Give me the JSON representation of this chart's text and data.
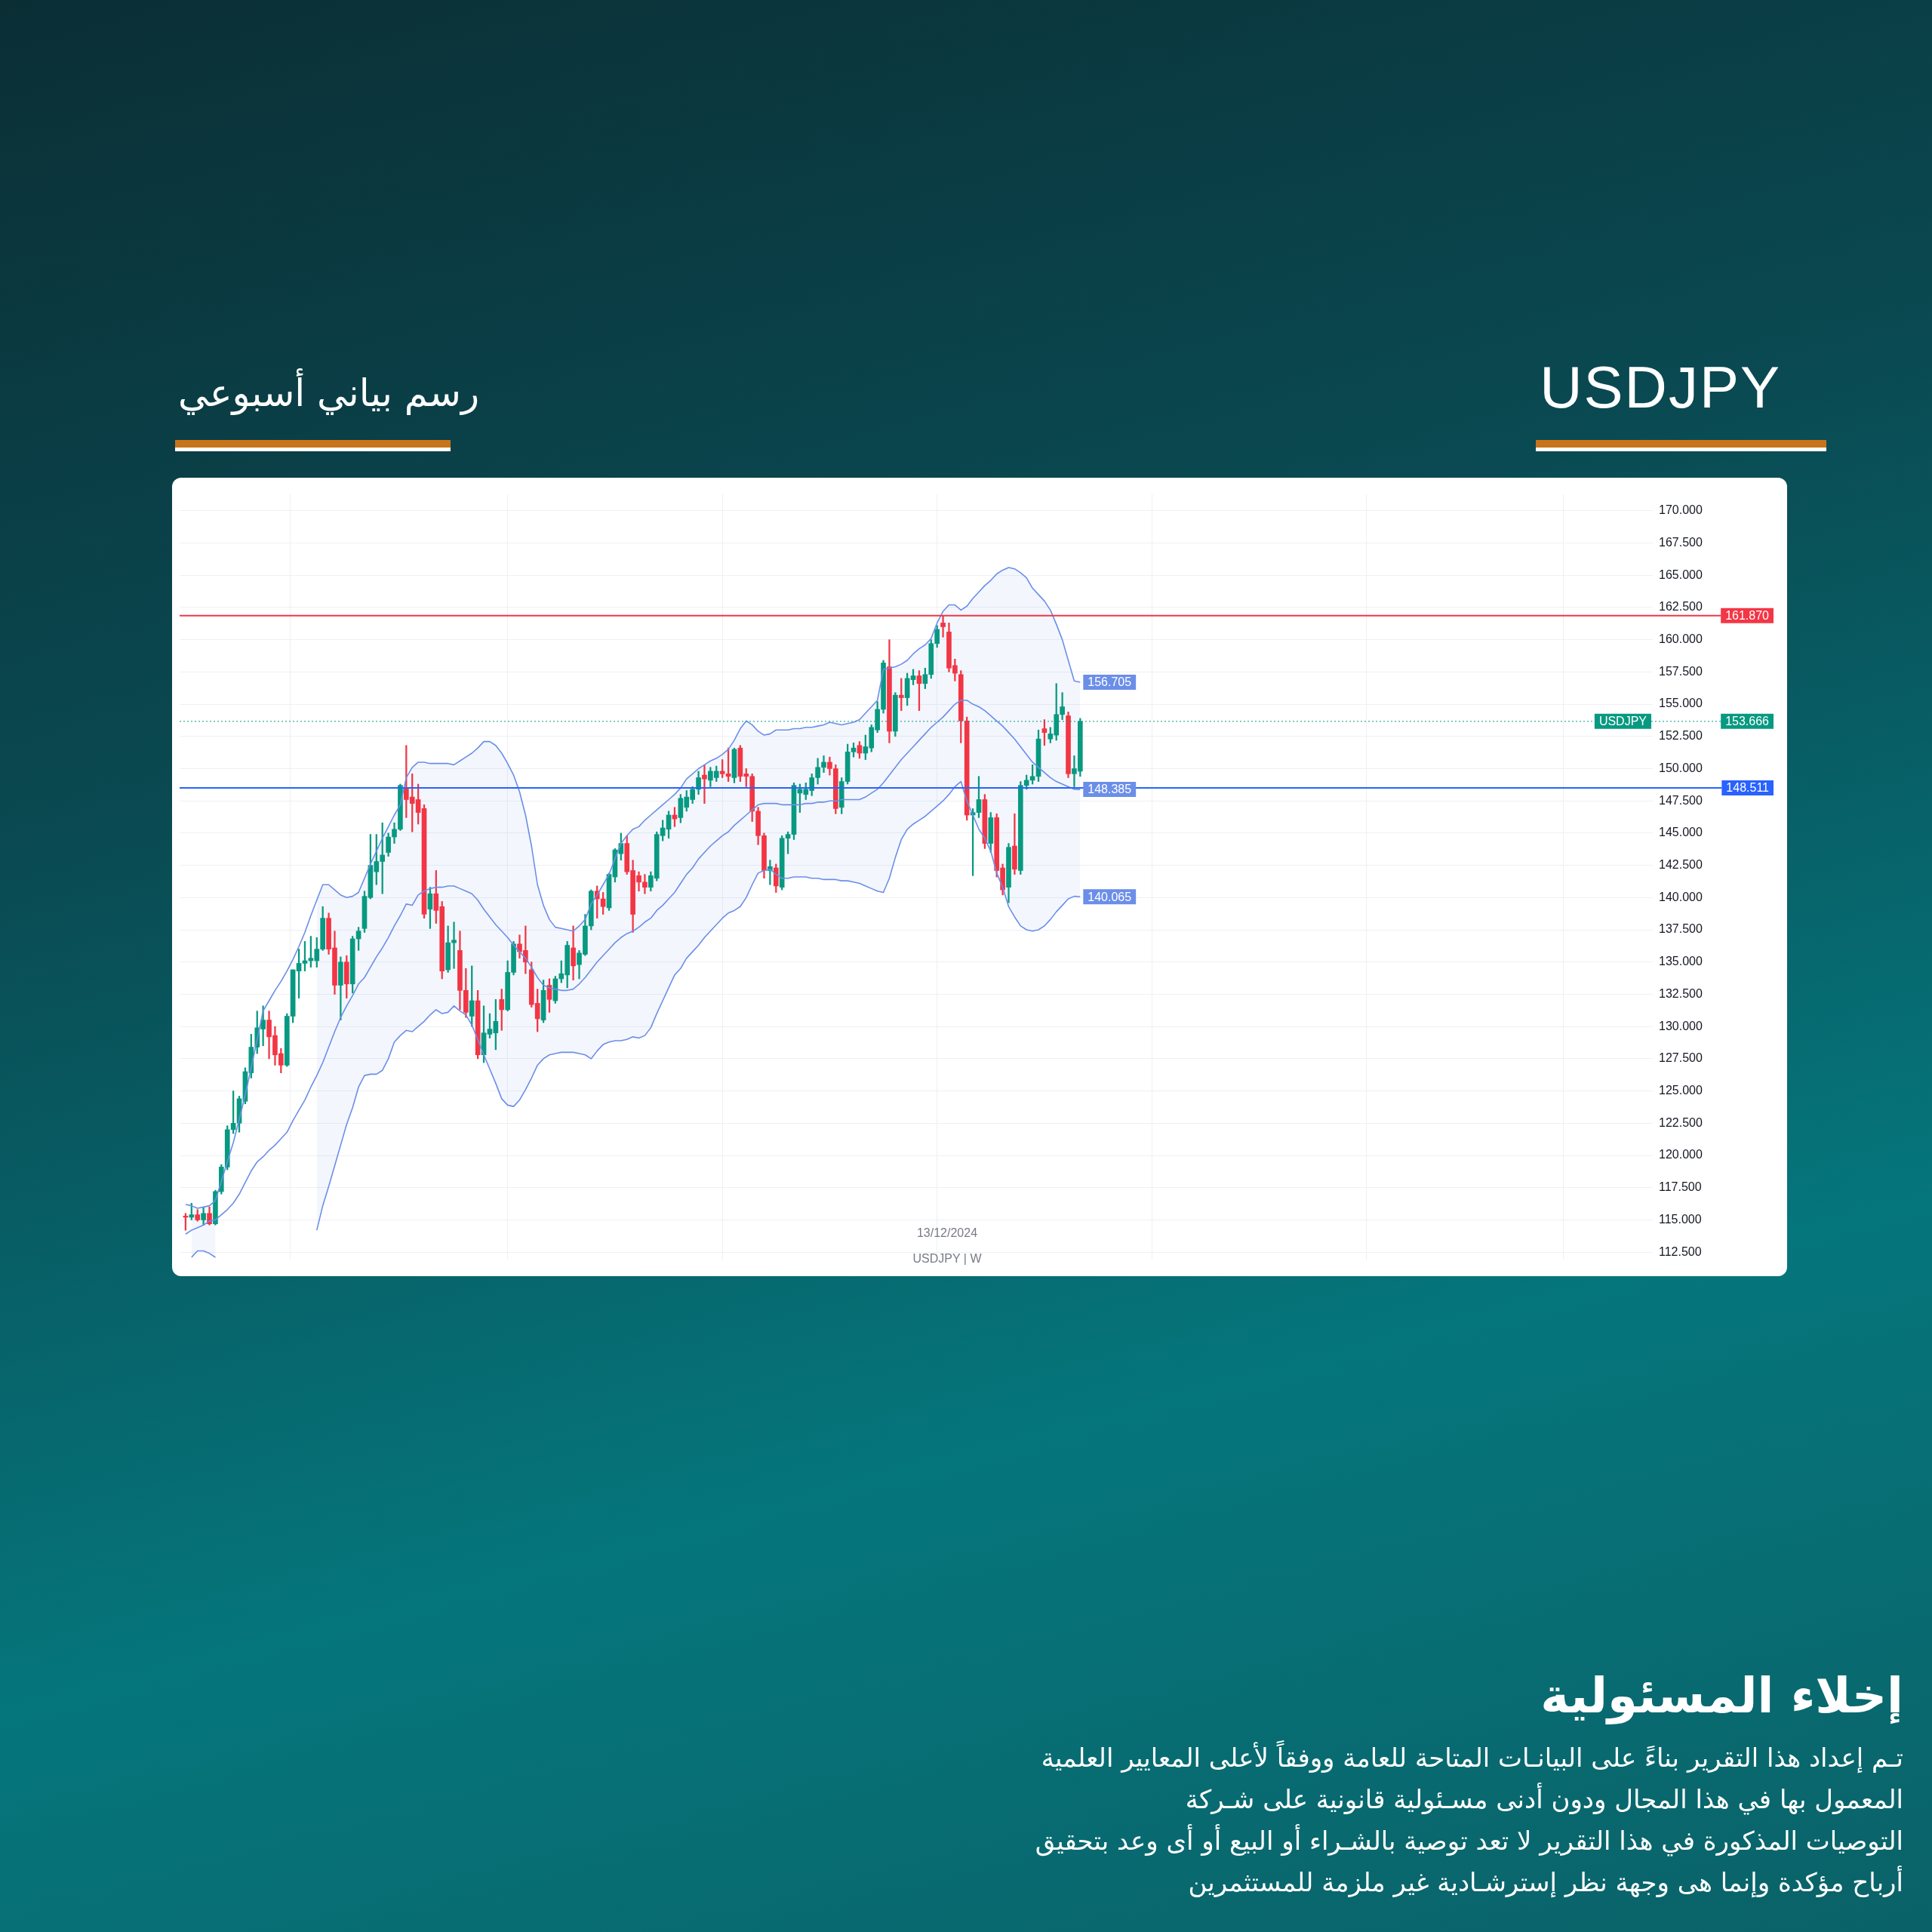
{
  "chart_data": {
    "type": "candlestick",
    "title": "USDJPY",
    "subtitle": "رسم بياني أسبوعي",
    "categories": [
      null,
      null,
      null,
      null,
      null,
      null,
      null,
      null,
      null,
      null,
      null,
      null,
      null,
      null,
      null,
      null,
      null,
      null,
      null,
      null,
      null,
      null,
      null,
      null,
      null,
      null,
      null,
      null,
      null,
      null,
      null,
      null,
      null,
      null,
      null,
      null,
      null,
      null,
      null,
      null,
      null,
      null,
      null,
      null,
      null,
      null,
      null,
      null,
      null,
      null,
      null,
      null,
      null,
      null,
      null,
      null,
      null,
      null,
      null,
      null,
      null,
      null,
      null,
      null,
      null,
      null,
      null,
      null,
      null,
      null,
      null,
      null,
      null,
      null,
      null,
      null,
      null,
      null,
      null,
      null,
      null,
      null,
      null,
      null,
      null,
      null,
      null,
      null,
      null,
      null,
      null,
      null,
      null,
      null,
      null,
      null,
      null,
      null,
      null,
      null,
      null,
      null,
      null,
      null,
      null,
      null,
      null,
      null,
      null,
      null,
      null,
      null,
      null,
      null,
      null,
      null,
      null,
      null,
      null,
      null,
      null,
      null,
      null,
      null,
      null,
      null,
      null,
      null,
      null,
      null,
      null,
      null,
      null,
      null,
      null,
      null,
      null,
      null,
      null,
      null,
      null,
      null,
      null,
      null,
      null,
      null,
      null,
      null,
      null,
      null,
      null
    ],
    "ohlc": [
      [
        115.3,
        115.5,
        114.2,
        115.2
      ],
      [
        115.2,
        116.3,
        115.0,
        115.4
      ],
      [
        115.4,
        115.8,
        114.9,
        115.0
      ],
      [
        115.0,
        116.0,
        114.6,
        115.5
      ],
      [
        115.5,
        116.0,
        114.6,
        114.7
      ],
      [
        114.7,
        117.3,
        114.6,
        117.2
      ],
      [
        117.2,
        119.3,
        117.0,
        119.1
      ],
      [
        119.1,
        122.3,
        118.9,
        122.0
      ],
      [
        122.0,
        125.0,
        121.7,
        122.5
      ],
      [
        122.5,
        124.6,
        121.8,
        124.4
      ],
      [
        124.2,
        126.8,
        124.0,
        126.5
      ],
      [
        126.4,
        129.4,
        126.0,
        128.4
      ],
      [
        128.4,
        131.2,
        127.9,
        129.9
      ],
      [
        129.8,
        131.6,
        128.5,
        130.5
      ],
      [
        130.5,
        131.2,
        127.5,
        129.2
      ],
      [
        129.3,
        130.0,
        127.0,
        127.8
      ],
      [
        127.9,
        128.3,
        126.4,
        127.0
      ],
      [
        127.0,
        131.0,
        126.9,
        130.8
      ],
      [
        130.8,
        134.4,
        130.3,
        134.4
      ],
      [
        134.3,
        136.0,
        132.2,
        134.9
      ],
      [
        134.9,
        136.6,
        134.3,
        135.1
      ],
      [
        135.1,
        137.0,
        134.6,
        135.3
      ],
      [
        135.1,
        136.9,
        134.6,
        136.0
      ],
      [
        136.0,
        139.3,
        135.9,
        138.4
      ],
      [
        138.4,
        138.8,
        135.6,
        136.0
      ],
      [
        136.1,
        137.4,
        132.5,
        133.2
      ],
      [
        133.2,
        135.4,
        130.5,
        135.0
      ],
      [
        135.0,
        135.5,
        132.2,
        133.3
      ],
      [
        133.3,
        137.0,
        132.6,
        136.8
      ],
      [
        136.8,
        137.7,
        135.9,
        137.4
      ],
      [
        137.6,
        140.5,
        137.3,
        140.1
      ],
      [
        140.0,
        144.9,
        139.9,
        142.5
      ],
      [
        142.0,
        144.9,
        141.0,
        142.8
      ],
      [
        142.8,
        145.8,
        140.3,
        143.3
      ],
      [
        143.5,
        145.0,
        143.2,
        144.7
      ],
      [
        144.7,
        145.8,
        144.2,
        145.3
      ],
      [
        145.3,
        148.8,
        145.2,
        148.7
      ],
      [
        148.5,
        151.8,
        146.2,
        147.6
      ],
      [
        147.8,
        149.6,
        145.1,
        147.3
      ],
      [
        147.6,
        148.8,
        145.7,
        146.6
      ],
      [
        146.9,
        147.2,
        138.4,
        138.7
      ],
      [
        139.1,
        140.8,
        137.6,
        140.3
      ],
      [
        140.3,
        142.1,
        138.0,
        139.0
      ],
      [
        139.3,
        139.7,
        133.7,
        134.3
      ],
      [
        134.4,
        137.8,
        134.2,
        136.5
      ],
      [
        136.5,
        138.1,
        134.5,
        136.7
      ],
      [
        135.9,
        137.4,
        131.3,
        132.8
      ],
      [
        132.8,
        134.5,
        130.7,
        131.1
      ],
      [
        130.8,
        134.7,
        130.0,
        132.0
      ],
      [
        132.0,
        132.8,
        127.5,
        127.8
      ],
      [
        127.8,
        131.6,
        127.2,
        129.5
      ],
      [
        129.4,
        131.0,
        129.1,
        129.8
      ],
      [
        129.5,
        132.1,
        128.2,
        130.4
      ],
      [
        132.1,
        132.9,
        129.7,
        131.3
      ],
      [
        131.3,
        135.1,
        131.2,
        134.2
      ],
      [
        134.2,
        136.6,
        134.0,
        136.4
      ],
      [
        136.4,
        137.1,
        135.3,
        135.8
      ],
      [
        135.9,
        137.8,
        134.1,
        135.0
      ],
      [
        134.4,
        135.0,
        131.5,
        131.7
      ],
      [
        131.8,
        132.9,
        129.6,
        130.6
      ],
      [
        130.5,
        133.6,
        130.3,
        132.8
      ],
      [
        133.2,
        133.7,
        131.1,
        132.1
      ],
      [
        132.0,
        133.9,
        131.8,
        133.7
      ],
      [
        133.7,
        135.1,
        133.4,
        134.1
      ],
      [
        134.0,
        136.6,
        133.0,
        136.3
      ],
      [
        136.1,
        137.8,
        133.6,
        134.7
      ],
      [
        134.8,
        135.9,
        133.7,
        135.7
      ],
      [
        135.6,
        138.7,
        135.5,
        137.8
      ],
      [
        137.8,
        140.6,
        137.5,
        140.5
      ],
      [
        140.5,
        140.9,
        138.4,
        139.9
      ],
      [
        139.9,
        140.4,
        138.7,
        139.3
      ],
      [
        139.2,
        141.9,
        139.0,
        141.8
      ],
      [
        141.6,
        143.8,
        141.2,
        143.7
      ],
      [
        143.4,
        145.0,
        142.9,
        144.2
      ],
      [
        144.2,
        144.8,
        141.8,
        142.0
      ],
      [
        142.1,
        142.9,
        137.3,
        138.7
      ],
      [
        141.7,
        142.0,
        140.5,
        141.2
      ],
      [
        141.2,
        141.8,
        140.3,
        140.8
      ],
      [
        140.8,
        142.0,
        140.5,
        141.7
      ],
      [
        141.5,
        145.1,
        141.3,
        144.9
      ],
      [
        144.8,
        146.0,
        144.4,
        145.4
      ],
      [
        145.3,
        146.7,
        144.6,
        146.4
      ],
      [
        146.4,
        147.0,
        145.5,
        146.1
      ],
      [
        146.2,
        148.0,
        145.8,
        147.7
      ],
      [
        147.0,
        148.3,
        146.7,
        147.8
      ],
      [
        147.6,
        148.6,
        147.3,
        148.4
      ],
      [
        148.4,
        149.8,
        148.0,
        149.3
      ],
      [
        149.5,
        150.3,
        147.3,
        149.2
      ],
      [
        149.1,
        150.1,
        148.6,
        149.8
      ],
      [
        149.3,
        150.2,
        149.0,
        149.8
      ],
      [
        149.8,
        150.7,
        149.3,
        149.6
      ],
      [
        149.6,
        151.6,
        149.0,
        149.4
      ],
      [
        149.3,
        151.6,
        148.9,
        151.5
      ],
      [
        151.6,
        151.8,
        149.0,
        149.4
      ],
      [
        149.6,
        150.0,
        148.6,
        149.4
      ],
      [
        149.4,
        149.6,
        145.9,
        146.7
      ],
      [
        146.7,
        147.0,
        144.1,
        144.8
      ],
      [
        144.8,
        145.0,
        141.5,
        142.1
      ],
      [
        142.1,
        142.9,
        141.0,
        142.4
      ],
      [
        142.3,
        142.6,
        140.4,
        140.9
      ],
      [
        140.8,
        144.8,
        140.6,
        144.6
      ],
      [
        144.6,
        145.1,
        143.4,
        144.9
      ],
      [
        144.9,
        148.9,
        144.5,
        148.7
      ],
      [
        148.1,
        148.8,
        146.6,
        148.4
      ],
      [
        148.0,
        148.9,
        147.6,
        148.4
      ],
      [
        148.3,
        149.6,
        147.9,
        149.3
      ],
      [
        149.3,
        150.8,
        148.8,
        150.1
      ],
      [
        150.1,
        151.0,
        149.7,
        150.5
      ],
      [
        150.5,
        150.9,
        149.5,
        150.0
      ],
      [
        150.0,
        150.3,
        146.5,
        146.9
      ],
      [
        147.0,
        149.3,
        146.5,
        149.0
      ],
      [
        149.0,
        151.9,
        148.8,
        151.3
      ],
      [
        151.3,
        152.0,
        150.9,
        151.6
      ],
      [
        151.8,
        152.1,
        150.8,
        151.2
      ],
      [
        151.2,
        152.6,
        150.7,
        151.7
      ],
      [
        151.6,
        153.4,
        151.3,
        153.2
      ],
      [
        153.0,
        155.2,
        152.8,
        154.6
      ],
      [
        154.6,
        158.4,
        154.3,
        158.2
      ],
      [
        157.9,
        160.0,
        152.0,
        152.9
      ],
      [
        152.9,
        155.9,
        152.5,
        155.7
      ],
      [
        155.7,
        157.0,
        154.5,
        155.5
      ],
      [
        155.5,
        157.4,
        154.9,
        157.0
      ],
      [
        156.9,
        157.7,
        156.5,
        157.2
      ],
      [
        157.2,
        157.6,
        154.5,
        156.6
      ],
      [
        156.6,
        157.8,
        156.2,
        157.3
      ],
      [
        157.3,
        160.0,
        157.0,
        159.7
      ],
      [
        159.7,
        161.1,
        159.4,
        160.8
      ],
      [
        161.3,
        161.87,
        160.2,
        161.0
      ],
      [
        160.6,
        161.3,
        157.5,
        157.8
      ],
      [
        158.0,
        158.5,
        156.8,
        157.4
      ],
      [
        157.3,
        157.6,
        152.0,
        153.7
      ],
      [
        153.7,
        154.0,
        146.0,
        146.4
      ],
      [
        146.4,
        146.9,
        141.7,
        146.6
      ],
      [
        146.6,
        149.4,
        146.2,
        147.6
      ],
      [
        147.6,
        148.0,
        143.8,
        144.2
      ],
      [
        144.2,
        146.6,
        143.5,
        146.2
      ],
      [
        146.2,
        146.5,
        141.6,
        142.1
      ],
      [
        142.3,
        142.6,
        140.2,
        140.6
      ],
      [
        140.8,
        144.2,
        139.6,
        143.9
      ],
      [
        144.0,
        146.5,
        141.8,
        142.2
      ],
      [
        142.1,
        149.0,
        141.8,
        148.7
      ],
      [
        148.7,
        149.5,
        148.4,
        149.1
      ],
      [
        149.1,
        150.3,
        148.8,
        149.4
      ],
      [
        149.4,
        153.0,
        149.0,
        152.3
      ],
      [
        153.1,
        153.8,
        151.8,
        152.8
      ],
      [
        152.3,
        153.2,
        152.0,
        152.7
      ],
      [
        152.6,
        156.6,
        152.2,
        154.2
      ],
      [
        154.2,
        155.9,
        153.8,
        154.8
      ],
      [
        154.1,
        154.4,
        149.3,
        149.6
      ],
      [
        149.6,
        151.0,
        148.6,
        150.0
      ],
      [
        149.8,
        153.9,
        149.4,
        153.666
      ]
    ],
    "series": [
      {
        "type": "line",
        "color": "#6b8ee8",
        "values": [
          113.9,
          114.2,
          114.4,
          114.6,
          114.9,
          115.0,
          115.4,
          115.8,
          116.3,
          117.0,
          117.9,
          118.8,
          119.5,
          119.9,
          120.4,
          120.8,
          121.3,
          121.8,
          122.7,
          123.5,
          124.3,
          125.3,
          126.2,
          127.2,
          128.4,
          129.6,
          130.7,
          131.6,
          132.4,
          133.3,
          133.8,
          134.6,
          135.4,
          136.1,
          136.9,
          137.8,
          138.6,
          139.5,
          139.4,
          140.2,
          140.5,
          140.7,
          140.8,
          140.8,
          140.9,
          140.9,
          140.7,
          140.5,
          140.3,
          139.8,
          139.1,
          138.5,
          137.9,
          137.4,
          136.9,
          136.3,
          135.8,
          135.3,
          134.6,
          133.8,
          133.2,
          133.0,
          132.9,
          132.8,
          132.8,
          132.9,
          133.3,
          133.8,
          134.4,
          135.0,
          135.5,
          136.0,
          136.5,
          136.9,
          137.2,
          137.4,
          137.7,
          138.1,
          138.4,
          139.0,
          139.4,
          139.9,
          140.4,
          141.1,
          141.8,
          142.3,
          143.0,
          143.5,
          144.0,
          144.4,
          144.8,
          145.1,
          145.6,
          146.0,
          146.4,
          146.8,
          147.2,
          147.3,
          147.3,
          147.3,
          147.2,
          147.2,
          147.2,
          147.2,
          147.3,
          147.3,
          147.4,
          147.4,
          147.5,
          147.5,
          147.6,
          147.6,
          147.6,
          147.6,
          147.8,
          148.1,
          148.4,
          148.9,
          149.5,
          150.1,
          150.7,
          151.2,
          151.7,
          152.2,
          152.7,
          153.2,
          153.6,
          154.0,
          154.5,
          155.0,
          155.3,
          155.3,
          155.0,
          154.8,
          154.5,
          154.1,
          153.7,
          153.3,
          152.8,
          152.3,
          151.7,
          151.1,
          150.5,
          150.1,
          149.7,
          149.3,
          149.0,
          148.8,
          148.6,
          148.4,
          148.385
        ],
        "value_labels": [
          null,
          null,
          null,
          null,
          null,
          null,
          null,
          null,
          null,
          null,
          null,
          null,
          null,
          null,
          null,
          null,
          null,
          null,
          null,
          null,
          null,
          null,
          null,
          null,
          null,
          null,
          null,
          null,
          null,
          null,
          null,
          null,
          null,
          null,
          null,
          null,
          null,
          null,
          null,
          null,
          null,
          null,
          null,
          null,
          null,
          null,
          null,
          null,
          null,
          null,
          null,
          null,
          null,
          null,
          null,
          null,
          null,
          null,
          null,
          null,
          null,
          null,
          null,
          null,
          null,
          null,
          null,
          null,
          null,
          null,
          null,
          null,
          null,
          null,
          null,
          null,
          null,
          null,
          null,
          null,
          null,
          null,
          null,
          null,
          null,
          null,
          null,
          null,
          null,
          null,
          null,
          null,
          null,
          null,
          null,
          null,
          null,
          null,
          null,
          null,
          null,
          null,
          null,
          null,
          null,
          null,
          null,
          null,
          null,
          null,
          null,
          null,
          null,
          null,
          null,
          null,
          null,
          null,
          null,
          null,
          null,
          null,
          null,
          null,
          null,
          null,
          null,
          null,
          null,
          null,
          null,
          null,
          null,
          null,
          null,
          null,
          null,
          null,
          null,
          null,
          null,
          null,
          null,
          null,
          null,
          null,
          null,
          null,
          null,
          null,
          "148.385"
        ],
        "lower": [
          null,
          112.1,
          112.6,
          112.6,
          112.4,
          112.1,
          null,
          null,
          null,
          null,
          null,
          null,
          null,
          null,
          null,
          null,
          null,
          null,
          null,
          null,
          null,
          null,
          114.2,
          116.1,
          117.6,
          119.2,
          120.8,
          122.4,
          123.7,
          125.3,
          126.2,
          126.3,
          126.3,
          126.6,
          127.5,
          128.8,
          129.3,
          129.7,
          129.6,
          130.0,
          130.4,
          130.9,
          131.3,
          131.0,
          131.1,
          131.6,
          131.2,
          130.9,
          130.1,
          129.0,
          127.8,
          126.7,
          125.6,
          124.4,
          123.9,
          123.8,
          124.3,
          125.1,
          126.0,
          127.0,
          127.5,
          127.8,
          127.9,
          128.0,
          128.0,
          128.0,
          127.9,
          127.8,
          127.5,
          128.1,
          128.6,
          128.8,
          128.9,
          128.9,
          129.0,
          129.2,
          129.1,
          129.3,
          129.9,
          131.0,
          132.0,
          133.0,
          134.0,
          134.5,
          135.3,
          135.8,
          136.3,
          136.9,
          137.4,
          137.9,
          138.4,
          138.8,
          139.0,
          139.3,
          140.0,
          141.0,
          141.9,
          142.1,
          142.2,
          141.8,
          141.5,
          141.5,
          141.6,
          141.6,
          141.6,
          141.5,
          141.5,
          141.4,
          141.4,
          141.4,
          141.3,
          141.3,
          141.2,
          141.1,
          140.9,
          140.7,
          140.5,
          140.4,
          141.5,
          143.1,
          144.5,
          145.3,
          145.7,
          146.0,
          146.3,
          146.7,
          147.1,
          147.5,
          148.0,
          148.6,
          149.0,
          147.5,
          146.4,
          145.3,
          144.6,
          143.6,
          141.9,
          140.8,
          139.3,
          138.5,
          137.8,
          137.5,
          137.4,
          137.5,
          137.8,
          138.3,
          138.9,
          139.4,
          139.9,
          140.1,
          140.065
        ],
        "upper": [
          null,
          116.1,
          115.9,
          116.0,
          116.1,
          116.5,
          null,
          null,
          null,
          null,
          null,
          null,
          null,
          null,
          null,
          null,
          null,
          null,
          null,
          null,
          null,
          null,
          139.8,
          141.0,
          141.0,
          140.6,
          140.2,
          140.0,
          140.1,
          140.4,
          141.5,
          142.6,
          143.6,
          144.6,
          145.5,
          146.4,
          147.2,
          149.3,
          150.1,
          150.5,
          150.5,
          150.4,
          150.4,
          150.4,
          150.4,
          150.3,
          150.6,
          150.9,
          151.2,
          151.6,
          152.1,
          152.1,
          151.8,
          151.2,
          150.4,
          149.5,
          148.2,
          146.4,
          144.0,
          141.0,
          139.4,
          138.3,
          137.7,
          137.6,
          137.5,
          137.4,
          137.8,
          138.3,
          139.5,
          140.2,
          141.0,
          141.8,
          143.0,
          144.2,
          144.8,
          145.3,
          145.5,
          146.0,
          146.4,
          146.8,
          147.2,
          147.6,
          148.0,
          148.5,
          149.2,
          149.6,
          150.0,
          150.3,
          150.6,
          150.8,
          151.1,
          151.5,
          152.2,
          153.1,
          153.7,
          153.4,
          152.9,
          152.6,
          152.7,
          153.0,
          153.0,
          153.0,
          153.1,
          153.1,
          153.2,
          153.2,
          153.3,
          153.4,
          153.6,
          153.5,
          153.4,
          153.5,
          153.6,
          153.8,
          154.3,
          154.8,
          155.3,
          157.7,
          157.8,
          157.9,
          158.1,
          158.4,
          158.9,
          159.3,
          159.6,
          160.1,
          161.3,
          162.2,
          162.7,
          162.7,
          162.3,
          162.6,
          163.2,
          163.7,
          164.2,
          164.6,
          165.1,
          165.4,
          165.6,
          165.5,
          165.2,
          164.8,
          164.0,
          163.5,
          163.0,
          162.3,
          161.2,
          160.0,
          158.4,
          156.8,
          156.705
        ]
      },
      {
        "type": "line",
        "color": "#6b8ee8",
        "values": [
          116.2,
          116.1,
          115.9,
          116.0,
          116.1,
          116.5,
          118.0,
          119.5,
          121.0,
          122.8,
          124.7,
          126.8,
          129.0,
          131.2,
          132.0,
          132.8,
          133.5,
          134.3,
          135.2,
          136.2,
          137.3,
          138.6,
          139.8,
          141.0,
          141.0,
          140.6,
          140.2,
          140.0,
          140.1,
          140.4,
          141.5,
          142.6,
          143.6,
          144.6,
          145.5,
          146.4,
          147.2,
          149.3,
          150.1,
          150.5,
          150.5,
          150.4,
          150.4,
          150.4,
          150.4,
          150.3,
          150.6,
          150.9,
          151.2,
          151.6,
          152.1,
          152.1,
          151.8,
          151.2,
          150.4,
          149.5,
          148.2,
          146.4,
          144.0,
          141.0,
          139.4,
          138.3,
          137.7,
          137.6,
          137.5,
          137.4,
          137.8,
          138.3,
          139.5,
          140.2,
          141.0,
          141.8,
          143.0,
          144.2,
          144.8,
          145.3,
          145.5,
          146.0,
          146.4,
          146.8,
          147.2,
          147.6,
          148.0,
          148.5,
          149.2,
          149.6,
          150.0,
          150.3,
          150.6,
          150.8,
          151.1,
          151.5,
          152.2,
          153.1,
          153.7,
          153.4,
          152.9,
          152.6,
          152.7,
          153.0,
          153.0,
          153.0,
          153.1,
          153.1,
          153.2,
          153.2,
          153.3,
          153.4,
          153.6,
          153.5,
          153.4,
          153.5,
          153.6,
          153.8,
          154.3,
          154.8,
          155.3,
          157.7,
          157.8,
          157.9,
          158.1,
          158.4,
          158.9,
          159.3,
          159.6,
          160.1,
          161.3,
          162.2,
          162.7,
          162.7,
          162.3,
          162.6,
          163.2,
          163.7,
          164.2,
          164.6,
          165.1,
          165.4,
          165.6,
          165.5,
          165.2,
          164.8,
          164.0,
          163.5,
          163.0,
          162.3,
          161.2,
          160.0,
          158.4,
          156.8,
          156.705
        ],
        "value_labels": [
          null,
          null,
          null,
          null,
          null,
          null,
          null,
          null,
          null,
          null,
          null,
          null,
          null,
          null,
          null,
          null,
          null,
          null,
          null,
          null,
          null,
          null,
          null,
          null,
          null,
          null,
          null,
          null,
          null,
          null,
          null,
          null,
          null,
          null,
          null,
          null,
          null,
          null,
          null,
          null,
          null,
          null,
          null,
          null,
          null,
          null,
          null,
          null,
          null,
          null,
          null,
          null,
          null,
          null,
          null,
          null,
          null,
          null,
          null,
          null,
          null,
          null,
          null,
          null,
          null,
          null,
          null,
          null,
          null,
          null,
          null,
          null,
          null,
          null,
          null,
          null,
          null,
          null,
          null,
          null,
          null,
          null,
          null,
          null,
          null,
          null,
          null,
          null,
          null,
          null,
          null,
          null,
          null,
          null,
          null,
          null,
          null,
          null,
          null,
          null,
          null,
          null,
          null,
          null,
          null,
          null,
          null,
          null,
          null,
          null,
          null,
          null,
          null,
          null,
          null,
          null,
          null,
          null,
          null,
          null,
          null,
          null,
          null,
          null,
          null,
          null,
          null,
          null,
          null,
          null,
          null,
          null,
          null,
          null,
          null,
          null,
          null,
          null,
          null,
          null,
          null,
          null,
          null,
          null,
          null,
          null,
          null,
          null,
          null,
          null,
          "156.705"
        ]
      },
      {
        "type": "line",
        "color": "#6b8ee8",
        "values": [
          null,
          112.1,
          112.6,
          112.6,
          112.4,
          112.1,
          null,
          null,
          null,
          null,
          null,
          null,
          null,
          null,
          null,
          null,
          null,
          null,
          null,
          null,
          null,
          null,
          114.2,
          116.1,
          117.6,
          119.2,
          120.8,
          122.4,
          123.7,
          125.3,
          126.2,
          126.3,
          126.3,
          126.6,
          127.5,
          128.8,
          129.3,
          129.7,
          129.6,
          130.0,
          130.4,
          130.9,
          131.3,
          131.0,
          131.1,
          131.6,
          131.2,
          130.9,
          130.1,
          129.0,
          127.8,
          126.7,
          125.6,
          124.4,
          123.9,
          123.8,
          124.3,
          125.1,
          126.0,
          127.0,
          127.5,
          127.8,
          127.9,
          128.0,
          128.0,
          128.0,
          127.9,
          127.8,
          127.5,
          128.1,
          128.6,
          128.8,
          128.9,
          128.9,
          129.0,
          129.2,
          129.1,
          129.3,
          129.9,
          131.0,
          132.0,
          133.0,
          134.0,
          134.5,
          135.3,
          135.8,
          136.3,
          136.9,
          137.4,
          137.9,
          138.4,
          138.8,
          139.0,
          139.3,
          140.0,
          141.0,
          141.9,
          142.1,
          142.2,
          141.8,
          141.5,
          141.5,
          141.6,
          141.6,
          141.6,
          141.5,
          141.5,
          141.4,
          141.4,
          141.4,
          141.3,
          141.3,
          141.2,
          141.1,
          140.9,
          140.7,
          140.5,
          140.4,
          141.5,
          143.1,
          144.5,
          145.3,
          145.7,
          146.0,
          146.3,
          146.7,
          147.1,
          147.5,
          148.0,
          148.6,
          149.0,
          147.5,
          146.4,
          145.3,
          144.6,
          143.6,
          141.9,
          140.8,
          139.3,
          138.5,
          137.8,
          137.5,
          137.4,
          137.5,
          137.8,
          138.3,
          138.9,
          139.4,
          139.9,
          140.1,
          140.065
        ],
        "value_labels": [
          null,
          null,
          null,
          null,
          null,
          null,
          null,
          null,
          null,
          null,
          null,
          null,
          null,
          null,
          null,
          null,
          null,
          null,
          null,
          null,
          null,
          null,
          null,
          null,
          null,
          null,
          null,
          null,
          null,
          null,
          null,
          null,
          null,
          null,
          null,
          null,
          null,
          null,
          null,
          null,
          null,
          null,
          null,
          null,
          null,
          null,
          null,
          null,
          null,
          null,
          null,
          null,
          null,
          null,
          null,
          null,
          null,
          null,
          null,
          null,
          null,
          null,
          null,
          null,
          null,
          null,
          null,
          null,
          null,
          null,
          null,
          null,
          null,
          null,
          null,
          null,
          null,
          null,
          null,
          null,
          null,
          null,
          null,
          null,
          null,
          null,
          null,
          null,
          null,
          null,
          null,
          null,
          null,
          null,
          null,
          null,
          null,
          null,
          null,
          null,
          null,
          null,
          null,
          null,
          null,
          null,
          null,
          null,
          null,
          null,
          null,
          null,
          null,
          null,
          null,
          null,
          null,
          null,
          null,
          null,
          null,
          null,
          null,
          null,
          null,
          null,
          null,
          null,
          null,
          null,
          null,
          null,
          null,
          null,
          null,
          null,
          null,
          null,
          null,
          null,
          null,
          null,
          null,
          null,
          null,
          null,
          null,
          null,
          null,
          null,
          "140.065"
        ]
      }
    ],
    "ylim": [
      111.9,
      171.3
    ],
    "yticks": [
      {
        "value": 112.5,
        "label": "112.500"
      },
      {
        "value": 115,
        "label": "115.000"
      },
      {
        "value": 117.5,
        "label": "117.500"
      },
      {
        "value": 120,
        "label": "120.000"
      },
      {
        "value": 122.5,
        "label": "122.500"
      },
      {
        "value": 125,
        "label": "125.000"
      },
      {
        "value": 127.5,
        "label": "127.500"
      },
      {
        "value": 130,
        "label": "130.000"
      },
      {
        "value": 132.5,
        "label": "132.500"
      },
      {
        "value": 135,
        "label": "135.000"
      },
      {
        "value": 137.5,
        "label": "137.500"
      },
      {
        "value": 140,
        "label": "140.000"
      },
      {
        "value": 142.5,
        "label": "142.500"
      },
      {
        "value": 145,
        "label": "145.000"
      },
      {
        "value": 147.5,
        "label": "147.500"
      },
      {
        "value": 150,
        "label": "150.000"
      },
      {
        "value": 152.5,
        "label": "152.500"
      },
      {
        "value": 155,
        "label": "155.000"
      },
      {
        "value": 157.5,
        "label": "157.500"
      },
      {
        "value": 160,
        "label": "160.000"
      },
      {
        "value": 162.5,
        "label": "162.500"
      },
      {
        "value": 165,
        "label": "165.000"
      },
      {
        "value": 167.5,
        "label": "167.500"
      },
      {
        "value": 170,
        "label": "170.000"
      }
    ],
    "ref_lines": [
      {
        "axis": "y",
        "value": 161.87,
        "label": "161.870",
        "color": "#f23645"
      },
      {
        "axis": "y",
        "value": 153.666,
        "label": "153.666",
        "color": "#089981",
        "line_style": "dotted"
      },
      {
        "axis": "y",
        "value": 148.511,
        "label": "148.511",
        "color": "#2962ff"
      }
    ],
    "annotations": [
      "13/12/2024",
      "USDJPY | W",
      "إخلاء المسئولية",
      "تـم إعداد هذا التقرير بناءً على البيانـات المتاحة للعامة ووفقاً لأعلى المعايير العلمية",
      "المعمول بها في هذا المجال ودون أدنى مسـئولية قانونية على شـركة",
      "التوصيات المذكورة في هذا التقرير لا تعد توصية بالشـراء أو البيع أو أى وعد بتحقيق",
      "أرباح مؤكدة وإنما هى وجهة نظر إسترشـادية غير ملزمة للمستثمرين",
      {
        "text": "USDJPY",
        "y": 153.666
      }
    ],
    "grid": true,
    "legend": false,
    "tick_labels": "y"
  }
}
